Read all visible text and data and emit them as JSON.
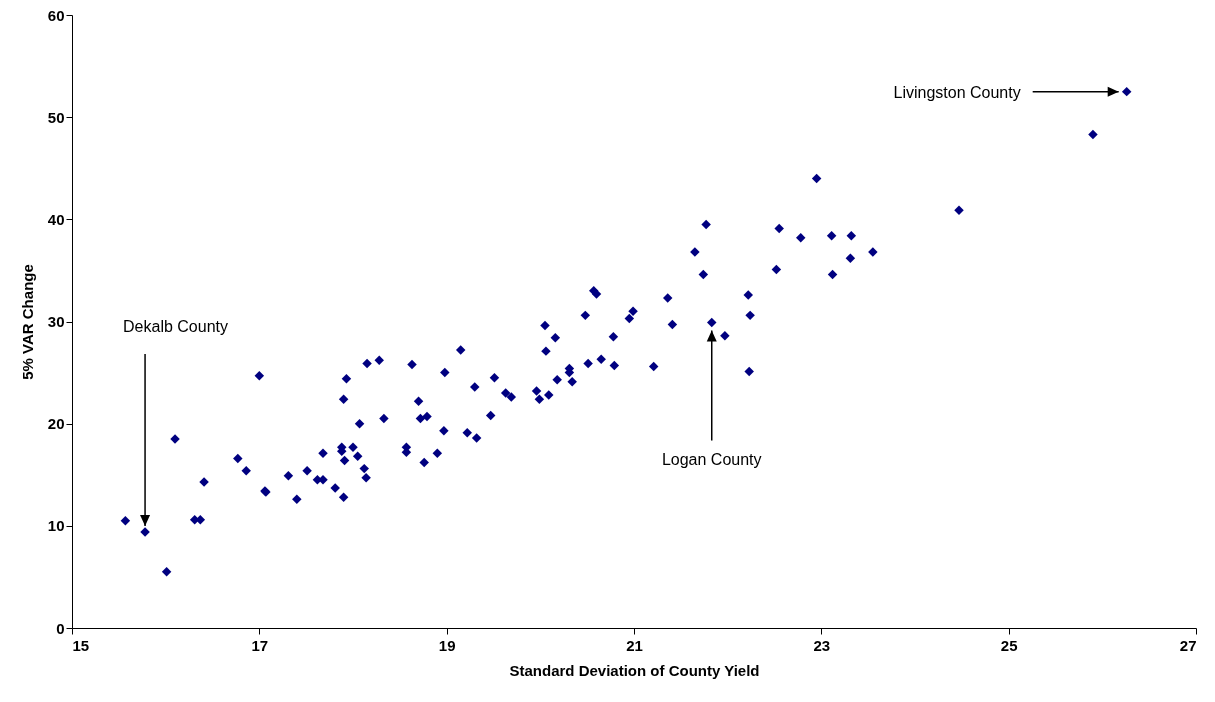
{
  "chart_data": {
    "type": "scatter",
    "xlabel": "Standard Deviation of County Yield",
    "ylabel": "5% VAR Change",
    "xlim": [
      15,
      27
    ],
    "xticks": [
      15,
      17,
      19,
      21,
      23,
      25,
      27
    ],
    "ylim": [
      0,
      60
    ],
    "yticks": [
      0,
      10,
      20,
      30,
      40,
      50,
      60
    ],
    "marker": "diamond",
    "series": [
      {
        "color": "#000080",
        "x": [
          15.57,
          15.78,
          16.01,
          16.1,
          16.31,
          16.37,
          16.41,
          16.77,
          16.86,
          17.0,
          17.06,
          17.07,
          17.31,
          17.4,
          17.51,
          17.62,
          17.68,
          17.68,
          17.81,
          17.88,
          17.88,
          17.9,
          17.9,
          17.91,
          17.93,
          18.0,
          18.05,
          18.07,
          18.12,
          18.14,
          18.15,
          18.28,
          18.33,
          18.57,
          18.57,
          18.63,
          18.7,
          18.72,
          18.76,
          18.79,
          18.9,
          18.97,
          18.98,
          19.15,
          19.22,
          19.3,
          19.32,
          19.47,
          19.51,
          19.63,
          19.69,
          19.96,
          19.99,
          20.05,
          20.06,
          20.09,
          20.16,
          20.18,
          20.31,
          20.31,
          20.34,
          20.48,
          20.51,
          20.57,
          20.6,
          20.65,
          20.78,
          20.79,
          20.95,
          20.99,
          21.21,
          21.36,
          21.41,
          21.65,
          21.74,
          21.77,
          21.83,
          21.97,
          22.22,
          22.23,
          22.24,
          22.52,
          22.55,
          22.78,
          22.95,
          23.11,
          23.12,
          23.31,
          23.32,
          23.55,
          24.47,
          25.9,
          26.26
        ],
        "values": [
          10.5,
          9.4,
          5.5,
          18.5,
          10.6,
          10.6,
          14.3,
          16.6,
          15.4,
          24.7,
          13.4,
          13.3,
          14.9,
          12.6,
          15.4,
          14.5,
          14.5,
          17.1,
          13.7,
          17.7,
          17.3,
          12.8,
          22.4,
          16.4,
          24.4,
          17.7,
          16.8,
          20.0,
          15.6,
          14.7,
          25.9,
          26.2,
          20.5,
          17.7,
          17.2,
          25.8,
          22.2,
          20.5,
          16.2,
          20.7,
          17.1,
          19.3,
          25.0,
          27.2,
          19.1,
          23.6,
          18.6,
          20.8,
          24.5,
          23.0,
          22.6,
          23.2,
          22.4,
          29.6,
          27.1,
          22.8,
          28.4,
          24.3,
          25.4,
          25.0,
          24.1,
          30.6,
          25.9,
          33.0,
          32.7,
          26.3,
          28.5,
          25.7,
          30.3,
          31.0,
          25.6,
          32.3,
          29.7,
          36.8,
          34.6,
          39.5,
          29.9,
          28.6,
          32.6,
          25.1,
          30.6,
          35.1,
          39.1,
          38.2,
          44.0,
          38.4,
          34.6,
          36.2,
          38.4,
          36.8,
          40.9,
          48.3,
          52.5
        ]
      }
    ],
    "annotations": [
      {
        "text": "Dekalb County",
        "x": 15.78,
        "y": 9.4
      },
      {
        "text": "Logan County",
        "x": 21.83,
        "y": 29.9
      },
      {
        "text": "Livingston County",
        "x": 26.26,
        "y": 52.5
      }
    ]
  }
}
